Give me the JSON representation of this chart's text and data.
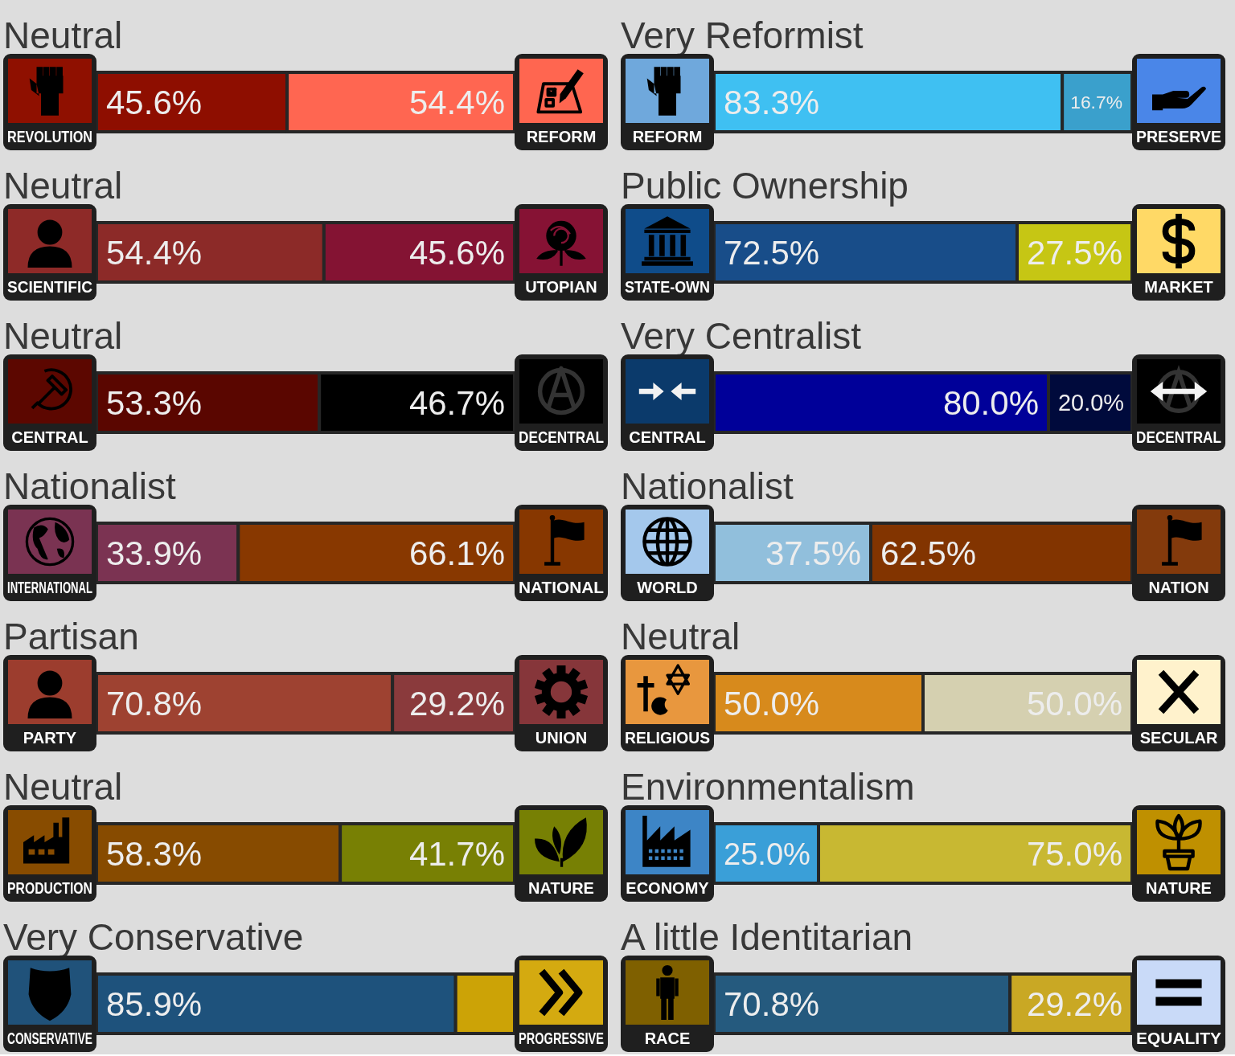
{
  "chart_data": [
    {
      "type": "bar",
      "orientation": "horizontal",
      "stacked": true,
      "title": "Neutral",
      "categories": [
        null
      ],
      "series": [
        {
          "name": "REVOLUTION",
          "color": "#8e0e00",
          "values": [
            45.6
          ],
          "value_labels": [
            "45.6%"
          ]
        },
        {
          "name": "REFORM",
          "color": "#ff6651",
          "values": [
            54.4
          ],
          "value_labels": [
            "54.4%"
          ]
        }
      ]
    },
    {
      "type": "bar",
      "orientation": "horizontal",
      "stacked": true,
      "title": "Very Reformist",
      "categories": [
        null
      ],
      "series": [
        {
          "name": "REFORM",
          "color": "#3fc0f2",
          "values": [
            83.3
          ],
          "value_labels": [
            "83.3%"
          ]
        },
        {
          "name": "PRESERVE",
          "color": "#3aa0cc",
          "values": [
            16.7
          ],
          "value_labels": [
            "16.7%"
          ]
        }
      ]
    },
    {
      "type": "bar",
      "orientation": "horizontal",
      "stacked": true,
      "title": "Neutral",
      "categories": [
        null
      ],
      "series": [
        {
          "name": "SCIENTIFIC",
          "color": "#8c2a28",
          "values": [
            54.4
          ],
          "value_labels": [
            "54.4%"
          ]
        },
        {
          "name": "UTOPIAN",
          "color": "#841333",
          "values": [
            45.6
          ],
          "value_labels": [
            "45.6%"
          ]
        }
      ]
    },
    {
      "type": "bar",
      "orientation": "horizontal",
      "stacked": true,
      "title": "Public Ownership",
      "categories": [
        null
      ],
      "series": [
        {
          "name": "STATE-OWN",
          "color": "#184d89",
          "values": [
            72.5
          ],
          "value_labels": [
            "72.5%"
          ]
        },
        {
          "name": "MARKET",
          "color": "#c6c614",
          "values": [
            27.5
          ],
          "value_labels": [
            "27.5%"
          ]
        }
      ]
    },
    {
      "type": "bar",
      "orientation": "horizontal",
      "stacked": true,
      "title": "Neutral",
      "categories": [
        null
      ],
      "series": [
        {
          "name": "CENTRAL",
          "color": "#5a0600",
          "values": [
            53.3
          ],
          "value_labels": [
            "53.3%"
          ]
        },
        {
          "name": "DECENTRAL",
          "color": "#000000",
          "values": [
            46.7
          ],
          "value_labels": [
            "46.7%"
          ]
        }
      ]
    },
    {
      "type": "bar",
      "orientation": "horizontal",
      "stacked": true,
      "title": "Very Centralist",
      "categories": [
        null
      ],
      "series": [
        {
          "name": "CENTRAL",
          "color": "#000099",
          "values": [
            80.0
          ],
          "value_labels": [
            "80.0%"
          ]
        },
        {
          "name": "DECENTRAL",
          "color": "#000a3c",
          "values": [
            20.0
          ],
          "value_labels": [
            "20.0%"
          ]
        }
      ]
    },
    {
      "type": "bar",
      "orientation": "horizontal",
      "stacked": true,
      "title": "Nationalist",
      "categories": [
        null
      ],
      "series": [
        {
          "name": "INTERNATIONAL",
          "color": "#7b3352",
          "values": [
            33.9
          ],
          "value_labels": [
            "33.9%"
          ]
        },
        {
          "name": "NATIONAL",
          "color": "#883800",
          "values": [
            66.1
          ],
          "value_labels": [
            "66.1%"
          ]
        }
      ]
    },
    {
      "type": "bar",
      "orientation": "horizontal",
      "stacked": true,
      "title": "Nationalist",
      "categories": [
        null
      ],
      "series": [
        {
          "name": "WORLD",
          "color": "#91bfdc",
          "values": [
            37.5
          ],
          "value_labels": [
            "37.5%"
          ]
        },
        {
          "name": "NATION",
          "color": "#823400",
          "values": [
            62.5
          ],
          "value_labels": [
            "62.5%"
          ]
        }
      ]
    },
    {
      "type": "bar",
      "orientation": "horizontal",
      "stacked": true,
      "title": "Partisan",
      "categories": [
        null
      ],
      "series": [
        {
          "name": "PARTY",
          "color": "#9e4231",
          "values": [
            70.8
          ],
          "value_labels": [
            "70.8%"
          ]
        },
        {
          "name": "UNION",
          "color": "#8a3a3c",
          "values": [
            29.2
          ],
          "value_labels": [
            "29.2%"
          ]
        }
      ]
    },
    {
      "type": "bar",
      "orientation": "horizontal",
      "stacked": true,
      "title": "Neutral",
      "categories": [
        null
      ],
      "series": [
        {
          "name": "RELIGIOUS",
          "color": "#d78a1c",
          "values": [
            50.0
          ],
          "value_labels": [
            "50.0%"
          ]
        },
        {
          "name": "SECULAR",
          "color": "#d5d0b0",
          "values": [
            50.0
          ],
          "value_labels": [
            "50.0%"
          ]
        }
      ]
    },
    {
      "type": "bar",
      "orientation": "horizontal",
      "stacked": true,
      "title": "Neutral",
      "categories": [
        null
      ],
      "series": [
        {
          "name": "PRODUCTION",
          "color": "#874b00",
          "values": [
            58.3
          ],
          "value_labels": [
            "58.3%"
          ]
        },
        {
          "name": "NATURE",
          "color": "#788004",
          "values": [
            41.7
          ],
          "value_labels": [
            "41.7%"
          ]
        }
      ]
    },
    {
      "type": "bar",
      "orientation": "horizontal",
      "stacked": true,
      "title": "Environmentalism",
      "categories": [
        null
      ],
      "series": [
        {
          "name": "ECONOMY",
          "color": "#3a9fd8",
          "values": [
            25.0
          ],
          "value_labels": [
            "25.0%"
          ]
        },
        {
          "name": "NATURE",
          "color": "#c8b832",
          "values": [
            75.0
          ],
          "value_labels": [
            "75.0%"
          ]
        }
      ]
    },
    {
      "type": "bar",
      "orientation": "horizontal",
      "stacked": true,
      "title": "Very Conservative",
      "categories": [
        null
      ],
      "series": [
        {
          "name": "CONSERVATIVE",
          "color": "#1e527c",
          "values": [
            85.9
          ],
          "value_labels": [
            "85.9%"
          ]
        },
        {
          "name": "PROGRESSIVE",
          "color": "#cca306",
          "values": [
            14.1
          ],
          "value_labels": [
            null
          ]
        }
      ]
    },
    {
      "type": "bar",
      "orientation": "horizontal",
      "stacked": true,
      "title": "A little Identitarian",
      "categories": [
        null
      ],
      "series": [
        {
          "name": "RACE",
          "color": "#255a7e",
          "values": [
            70.8
          ],
          "value_labels": [
            "70.8%"
          ]
        },
        {
          "name": "EQUALITY",
          "color": "#c9a824",
          "values": [
            29.2
          ],
          "value_labels": [
            "29.2%"
          ]
        }
      ]
    }
  ]
}
